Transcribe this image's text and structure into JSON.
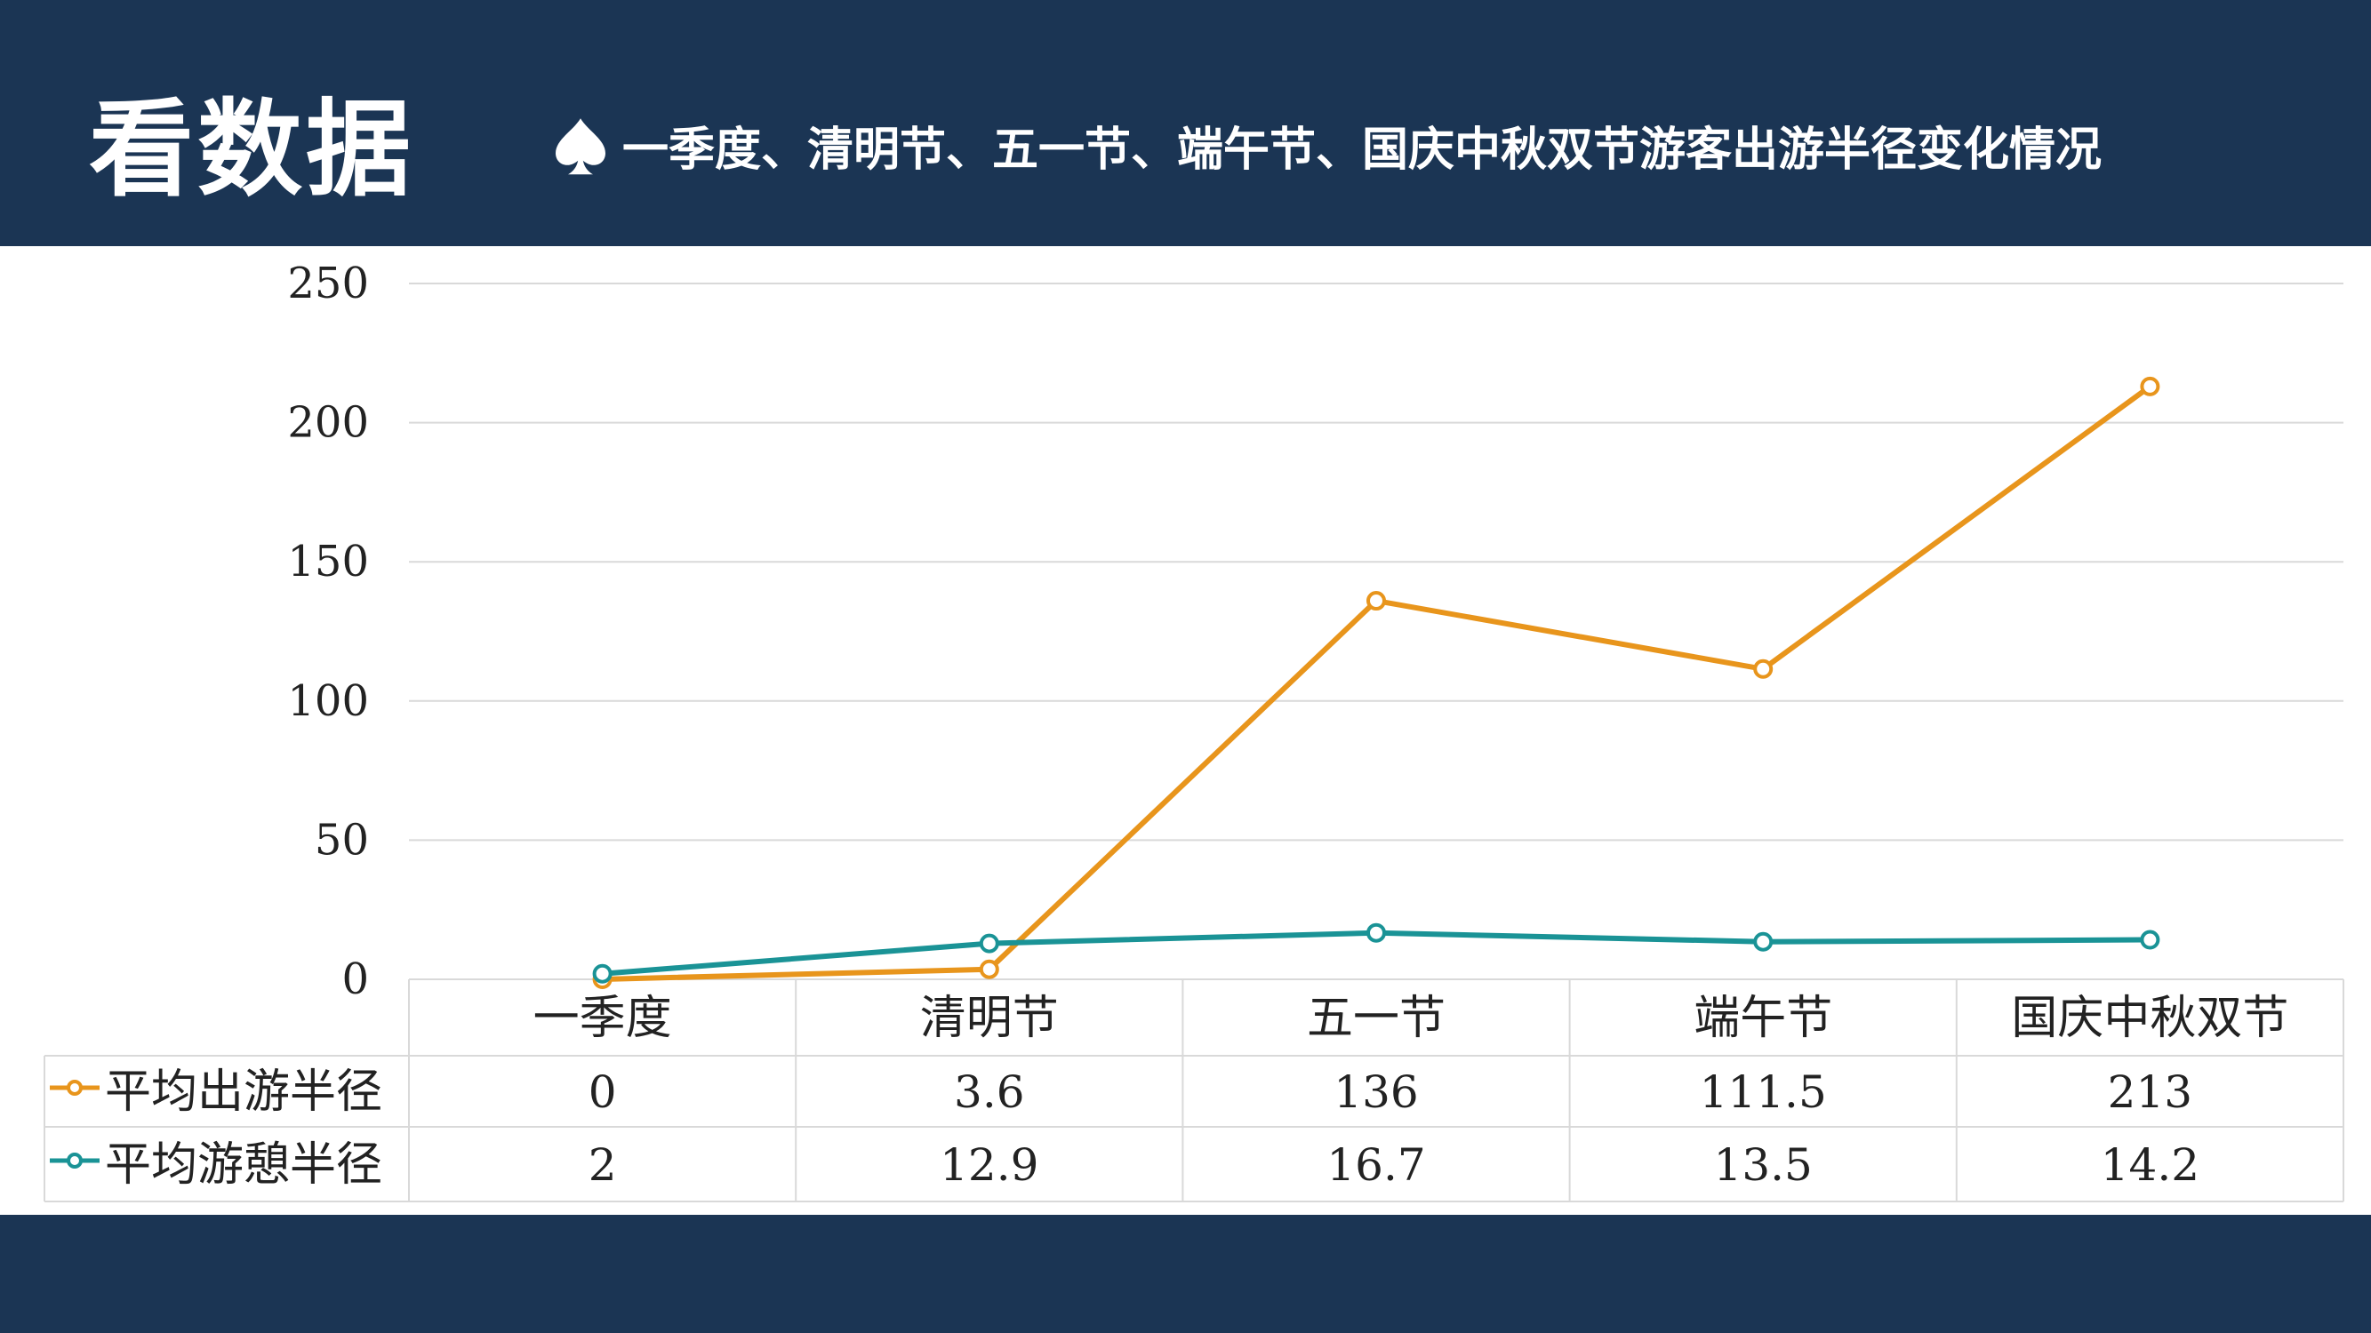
{
  "header": {
    "heading": "看数据",
    "subtitle": "一季度、清明节、五一节、端午节、国庆中秋双节游客出游半径变化情况",
    "subtitle_icon": "spade-icon"
  },
  "colors": {
    "background": "#1b3554",
    "series1": "#e8951c",
    "series2": "#1a9396"
  },
  "chart_data": {
    "type": "line",
    "categories": [
      "一季度",
      "清明节",
      "五一节",
      "端午节",
      "国庆中秋双节"
    ],
    "series": [
      {
        "name": "平均出游半径",
        "values": [
          0,
          3.6,
          136,
          111.5,
          213
        ],
        "labels": [
          "0",
          "3.6",
          "136",
          "111.5",
          "213"
        ]
      },
      {
        "name": "平均游憩半径",
        "values": [
          2,
          12.9,
          16.7,
          13.5,
          14.2
        ],
        "labels": [
          "2",
          "12.9",
          "16.7",
          "13.5",
          "14.2"
        ]
      }
    ],
    "yticks": [
      "0",
      "50",
      "100",
      "150",
      "200",
      "250"
    ],
    "ylim": [
      0,
      250
    ],
    "grid": true,
    "data_table": true,
    "title": "",
    "xlabel": "",
    "ylabel": ""
  }
}
